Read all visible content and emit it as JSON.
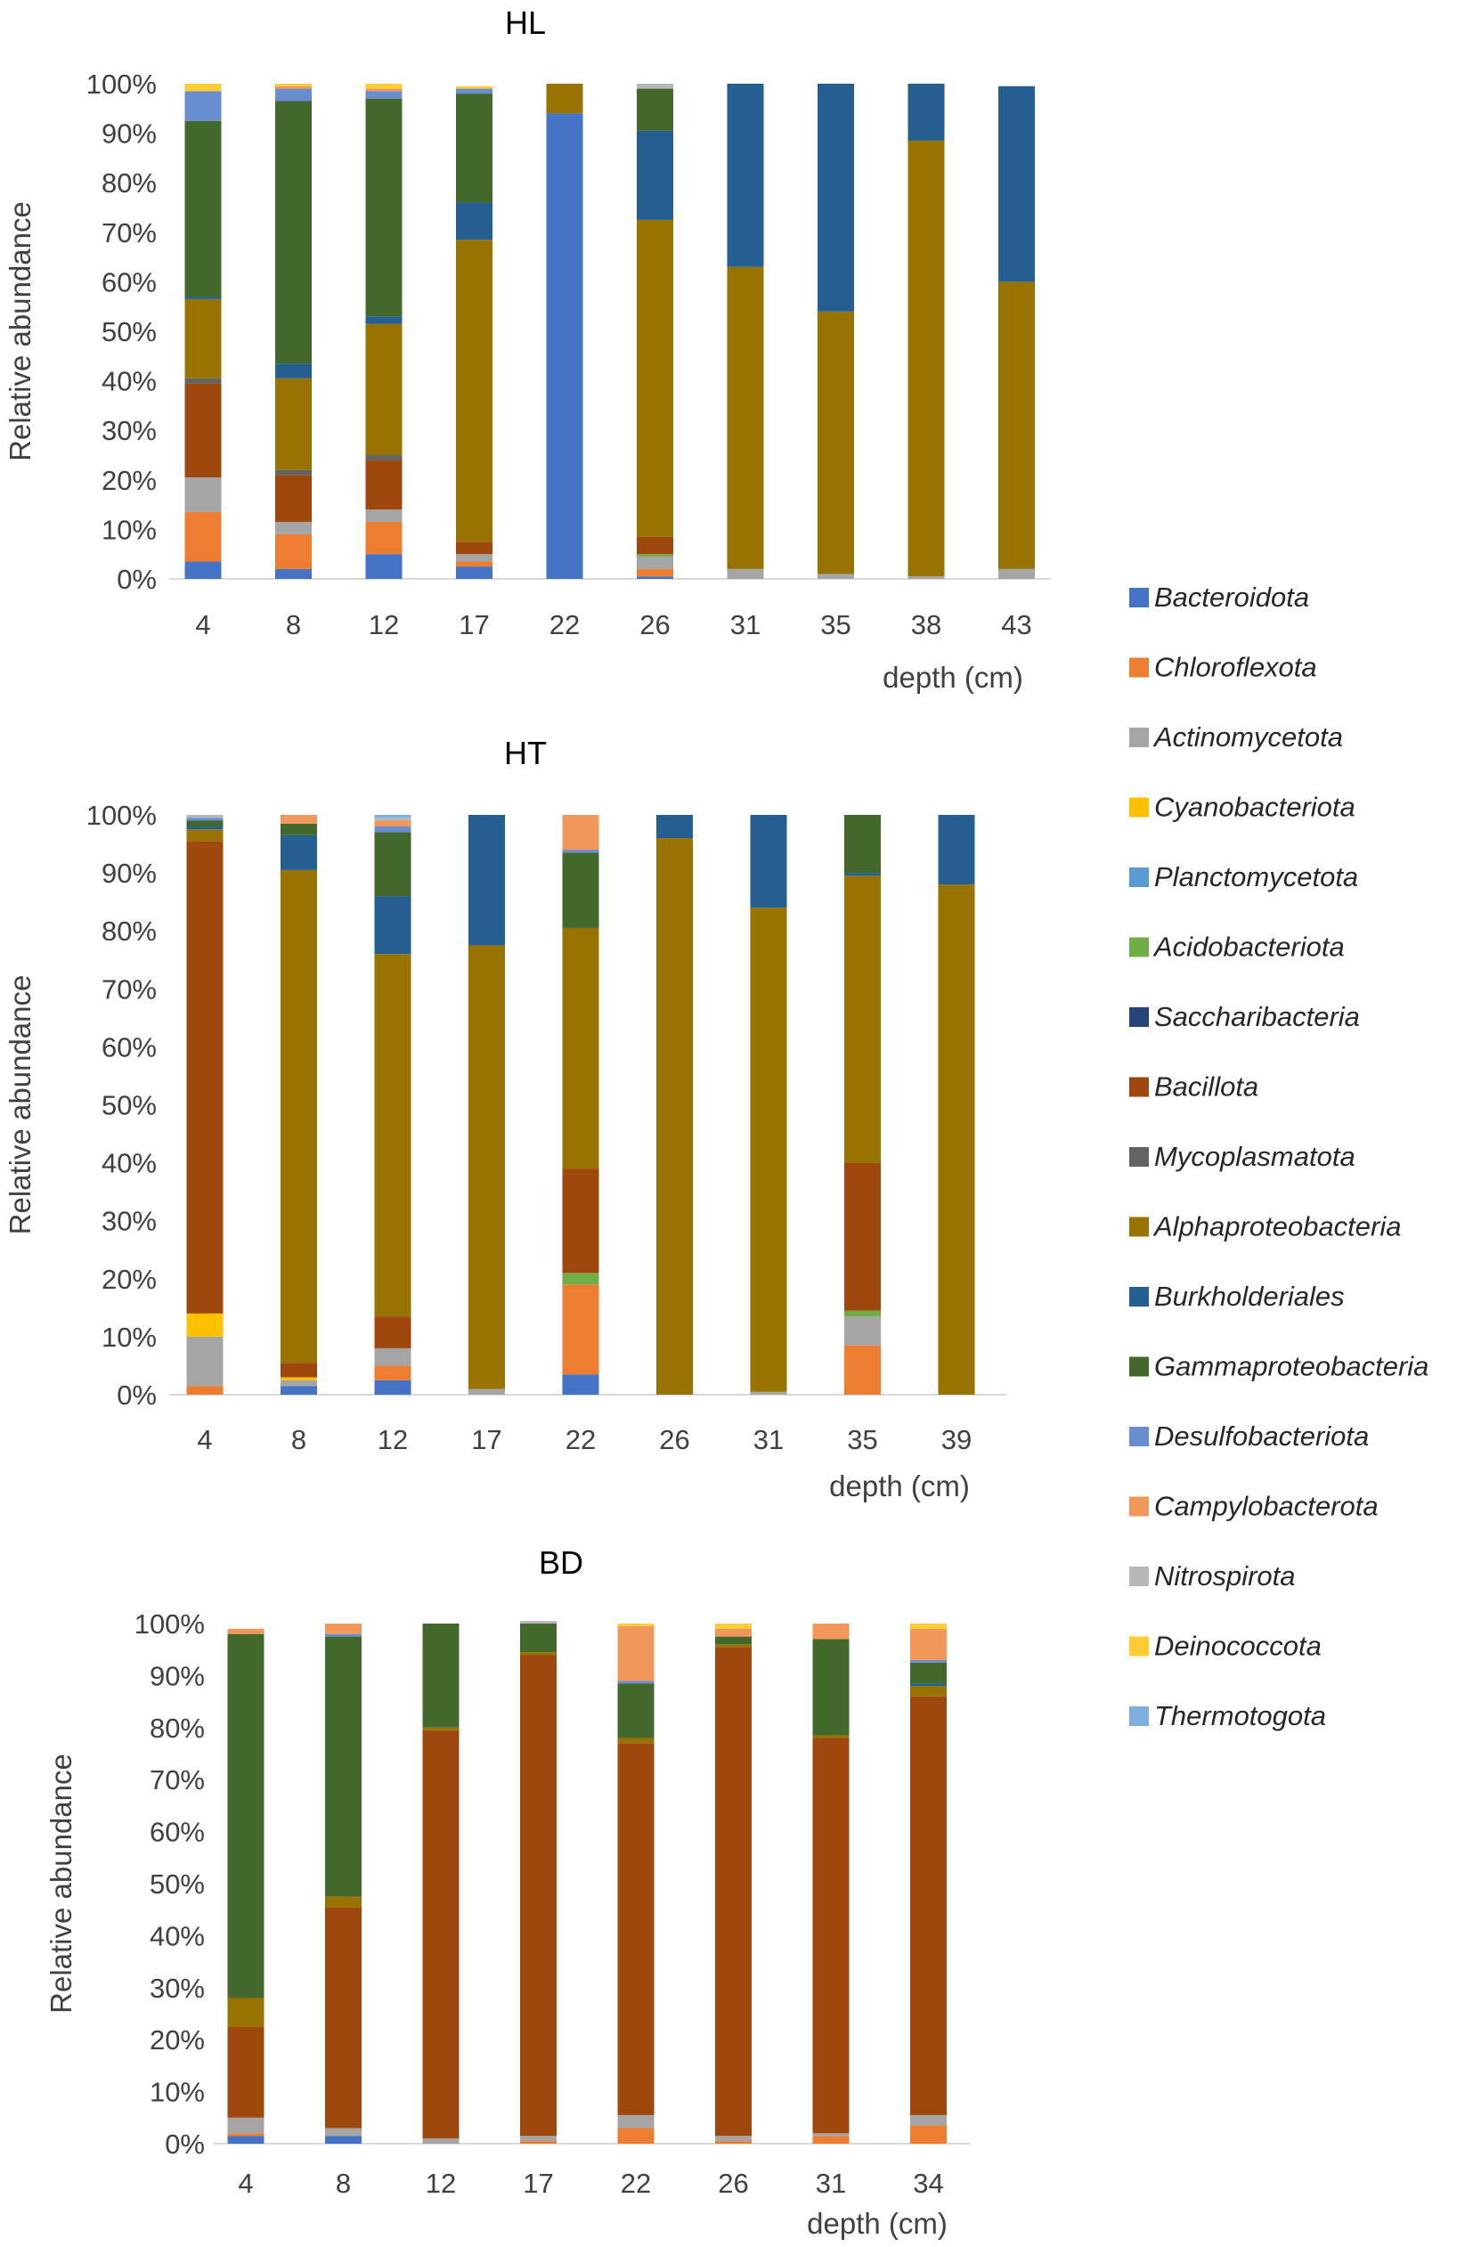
{
  "legend": [
    {
      "name": "Bacteroidota",
      "color": "#4472C4"
    },
    {
      "name": "Chloroflexota",
      "color": "#ED7D31"
    },
    {
      "name": "Actinomycetota",
      "color": "#A5A5A5"
    },
    {
      "name": "Cyanobacteriota",
      "color": "#FFC000"
    },
    {
      "name": "Planctomycetota",
      "color": "#5B9BD5"
    },
    {
      "name": "Acidobacteriota",
      "color": "#70AD47"
    },
    {
      "name": "Saccharibacteria",
      "color": "#264478"
    },
    {
      "name": "Bacillota",
      "color": "#9E480E"
    },
    {
      "name": "Mycoplasmatota",
      "color": "#636363"
    },
    {
      "name": "Alphaproteobacteria",
      "color": "#997300"
    },
    {
      "name": "Burkholderiales",
      "color": "#255E91"
    },
    {
      "name": "Gammaproteobacteria",
      "color": "#43682B"
    },
    {
      "name": "Desulfobacteriota",
      "color": "#698ED0"
    },
    {
      "name": "Campylobacterota",
      "color": "#F1975A"
    },
    {
      "name": "Nitrospirota",
      "color": "#B7B7B7"
    },
    {
      "name": "Deinococcota",
      "color": "#FFCD33"
    },
    {
      "name": "Thermotogota",
      "color": "#7CAFDD"
    }
  ],
  "chart_data": [
    {
      "type": "bar",
      "stacked": true,
      "title": "HL",
      "xlabel": "depth (cm)",
      "ylabel": "Relative abundance",
      "ylim": [
        0,
        100
      ],
      "yticks": [
        "0%",
        "10%",
        "20%",
        "30%",
        "40%",
        "50%",
        "60%",
        "70%",
        "80%",
        "90%",
        "100%"
      ],
      "categories": [
        "4",
        "8",
        "12",
        "17",
        "22",
        "26",
        "31",
        "35",
        "38",
        "43"
      ],
      "series": [
        {
          "name": "Bacteroidota",
          "values": [
            3.5,
            2,
            5,
            2.5,
            94,
            0.5,
            0,
            0,
            0,
            0
          ]
        },
        {
          "name": "Chloroflexota",
          "values": [
            10,
            7,
            6.5,
            1,
            0,
            1.5,
            0,
            0,
            0,
            0
          ]
        },
        {
          "name": "Actinomycetota",
          "values": [
            7,
            2.5,
            2.5,
            1.5,
            0,
            2.5,
            2,
            1,
            0.5,
            2
          ]
        },
        {
          "name": "Cyanobacteriota",
          "values": [
            0,
            0,
            0,
            0,
            0,
            0,
            0,
            0,
            0,
            0
          ]
        },
        {
          "name": "Planctomycetota",
          "values": [
            0,
            0,
            0,
            0,
            0,
            0,
            0,
            0,
            0,
            0
          ]
        },
        {
          "name": "Acidobacteriota",
          "values": [
            0,
            0,
            0,
            0,
            0,
            0.5,
            0,
            0,
            0,
            0
          ]
        },
        {
          "name": "Saccharibacteria",
          "values": [
            0,
            0,
            0,
            0,
            0,
            0,
            0,
            0,
            0,
            0
          ]
        },
        {
          "name": "Bacillota",
          "values": [
            19,
            9.5,
            10,
            2.5,
            0,
            3.5,
            0,
            0,
            0,
            0
          ]
        },
        {
          "name": "Mycoplasmatota",
          "values": [
            1,
            1,
            1,
            0,
            0,
            0,
            0,
            0,
            0,
            0
          ]
        },
        {
          "name": "Alphaproteobacteria",
          "values": [
            16,
            18.5,
            26.5,
            61,
            6,
            64,
            61,
            53,
            88,
            58
          ]
        },
        {
          "name": "Burkholderiales",
          "values": [
            0.5,
            3,
            1.5,
            7.5,
            0,
            18,
            37,
            46,
            11.5,
            39.5
          ]
        },
        {
          "name": "Gammaproteobacteria",
          "values": [
            35.5,
            53,
            44,
            22,
            0,
            8.5,
            0,
            0,
            0,
            0
          ]
        },
        {
          "name": "Desulfobacteriota",
          "values": [
            6,
            2.5,
            1.5,
            1,
            0,
            0,
            0,
            0,
            0,
            0
          ]
        },
        {
          "name": "Campylobacterota",
          "values": [
            0,
            0.5,
            0.5,
            0,
            0,
            0,
            0,
            0,
            0,
            0
          ]
        },
        {
          "name": "Nitrospirota",
          "values": [
            0,
            0,
            0,
            0,
            0,
            1,
            0,
            0,
            0,
            0
          ]
        },
        {
          "name": "Deinococcota",
          "values": [
            1.5,
            0.5,
            1,
            0.5,
            0,
            0,
            0,
            0,
            0,
            0
          ]
        },
        {
          "name": "Thermotogota",
          "values": [
            0,
            0,
            0,
            0,
            0,
            0,
            0,
            0,
            0,
            0
          ]
        }
      ]
    },
    {
      "type": "bar",
      "stacked": true,
      "title": "HT",
      "xlabel": "depth (cm)",
      "ylabel": "Relative abundance",
      "ylim": [
        0,
        100
      ],
      "yticks": [
        "0%",
        "10%",
        "20%",
        "30%",
        "40%",
        "50%",
        "60%",
        "70%",
        "80%",
        "90%",
        "100%"
      ],
      "categories": [
        "4",
        "8",
        "12",
        "17",
        "22",
        "26",
        "31",
        "35",
        "39"
      ],
      "series": [
        {
          "name": "Bacteroidota",
          "values": [
            0,
            1.5,
            2.5,
            0,
            3.5,
            0,
            0,
            0,
            0
          ]
        },
        {
          "name": "Chloroflexota",
          "values": [
            1.5,
            0,
            2.5,
            0,
            15.5,
            0,
            0,
            8.5,
            0
          ]
        },
        {
          "name": "Actinomycetota",
          "values": [
            8.5,
            1,
            3,
            1,
            0,
            0,
            0.5,
            5,
            0
          ]
        },
        {
          "name": "Cyanobacteriota",
          "values": [
            4,
            0.5,
            0,
            0,
            0,
            0,
            0,
            0,
            0
          ]
        },
        {
          "name": "Planctomycetota",
          "values": [
            0,
            0,
            0,
            0,
            0,
            0,
            0,
            0,
            0
          ]
        },
        {
          "name": "Acidobacteriota",
          "values": [
            0,
            0,
            0,
            0,
            2,
            0,
            0,
            1,
            0
          ]
        },
        {
          "name": "Saccharibacteria",
          "values": [
            0,
            0,
            0,
            0,
            0,
            0,
            0,
            0,
            0
          ]
        },
        {
          "name": "Bacillota",
          "values": [
            81.5,
            2.5,
            5.5,
            0,
            18,
            0,
            0,
            25.5,
            0
          ]
        },
        {
          "name": "Mycoplasmatota",
          "values": [
            0,
            0,
            0,
            0,
            0,
            0,
            0,
            0,
            0
          ]
        },
        {
          "name": "Alphaproteobacteria",
          "values": [
            2,
            85,
            62.5,
            76.5,
            41.5,
            96,
            83.5,
            49.5,
            88
          ]
        },
        {
          "name": "Burkholderiales",
          "values": [
            0.5,
            6,
            10,
            22.5,
            0,
            4,
            16,
            0.5,
            12
          ]
        },
        {
          "name": "Gammaproteobacteria",
          "values": [
            1,
            2,
            11,
            0,
            13,
            0,
            0,
            10,
            0
          ]
        },
        {
          "name": "Desulfobacteriota",
          "values": [
            0.5,
            0,
            1,
            0,
            0.5,
            0,
            0,
            0,
            0
          ]
        },
        {
          "name": "Campylobacterota",
          "values": [
            0,
            1.5,
            1,
            0,
            6,
            0,
            0,
            0,
            0
          ]
        },
        {
          "name": "Nitrospirota",
          "values": [
            0.5,
            0,
            0.5,
            0,
            0,
            0,
            0,
            0,
            0
          ]
        },
        {
          "name": "Deinococcota",
          "values": [
            0,
            0,
            0,
            0,
            0,
            0,
            0,
            0,
            0
          ]
        },
        {
          "name": "Thermotogota",
          "values": [
            0,
            0,
            0.5,
            0,
            0,
            0,
            0,
            0,
            0
          ]
        }
      ]
    },
    {
      "type": "bar",
      "stacked": true,
      "title": "BD",
      "xlabel": "depth (cm)",
      "ylabel": "Relative abundance",
      "ylim": [
        0,
        100
      ],
      "yticks": [
        "0%",
        "10%",
        "20%",
        "30%",
        "40%",
        "50%",
        "60%",
        "70%",
        "80%",
        "90%",
        "100%"
      ],
      "categories": [
        "4",
        "8",
        "12",
        "17",
        "22",
        "26",
        "31",
        "34"
      ],
      "series": [
        {
          "name": "Bacteroidota",
          "values": [
            1.5,
            1.5,
            0,
            0,
            0,
            0,
            0,
            0
          ]
        },
        {
          "name": "Chloroflexota",
          "values": [
            0.5,
            0,
            0,
            0.5,
            3,
            0.5,
            1.5,
            3.5
          ]
        },
        {
          "name": "Actinomycetota",
          "values": [
            3,
            1.5,
            1,
            1,
            2.5,
            1,
            0.5,
            2
          ]
        },
        {
          "name": "Cyanobacteriota",
          "values": [
            0,
            0,
            0,
            0,
            0,
            0,
            0,
            0
          ]
        },
        {
          "name": "Planctomycetota",
          "values": [
            0,
            0,
            0,
            0,
            0,
            0,
            0,
            0
          ]
        },
        {
          "name": "Acidobacteriota",
          "values": [
            0,
            0,
            0,
            0,
            0,
            0,
            0,
            0
          ]
        },
        {
          "name": "Saccharibacteria",
          "values": [
            0,
            0,
            0,
            0,
            0,
            0,
            0,
            0
          ]
        },
        {
          "name": "Bacillota",
          "values": [
            17.5,
            42.5,
            78.5,
            92.5,
            71.5,
            94,
            76,
            80.5
          ]
        },
        {
          "name": "Mycoplasmatota",
          "values": [
            0,
            0,
            0,
            0,
            0,
            0,
            0,
            0
          ]
        },
        {
          "name": "Alphaproteobacteria",
          "values": [
            5.5,
            2,
            0.5,
            0.5,
            1,
            0.5,
            0.5,
            2
          ]
        },
        {
          "name": "Burkholderiales",
          "values": [
            0,
            0,
            0,
            0,
            0,
            0,
            0,
            0.5
          ]
        },
        {
          "name": "Gammaproteobacteria",
          "values": [
            70,
            50,
            20,
            5.5,
            10.5,
            1.5,
            18.5,
            4
          ]
        },
        {
          "name": "Desulfobacteriota",
          "values": [
            0,
            0.5,
            0,
            0,
            0.5,
            0,
            0,
            0.5
          ]
        },
        {
          "name": "Campylobacterota",
          "values": [
            1,
            2,
            0,
            0,
            10.5,
            1.5,
            3,
            6
          ]
        },
        {
          "name": "Nitrospirota",
          "values": [
            0,
            0,
            0,
            0.5,
            0,
            0,
            0,
            0
          ]
        },
        {
          "name": "Deinococcota",
          "values": [
            0,
            0,
            0,
            0,
            0.5,
            1,
            0,
            1
          ]
        },
        {
          "name": "Thermotogota",
          "values": [
            0,
            0,
            0,
            0,
            0,
            0,
            0,
            0
          ]
        }
      ]
    }
  ]
}
